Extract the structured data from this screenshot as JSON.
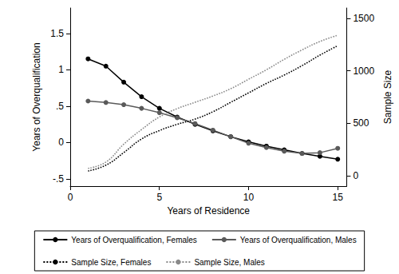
{
  "chart_data": {
    "type": "line",
    "xlabel": "Years of Residence",
    "ylabel": "Years of Overqualification",
    "y2label": "Sample Size",
    "x": [
      1,
      2,
      3,
      4,
      5,
      6,
      7,
      8,
      9,
      10,
      11,
      12,
      13,
      14,
      15
    ],
    "xlim": [
      0,
      15.5
    ],
    "xticks": [
      0,
      5,
      10,
      15
    ],
    "ylim": [
      -0.6,
      1.85
    ],
    "yticks": [
      {
        "value": -0.5,
        "label": "-.5"
      },
      0,
      {
        "value": 0.5,
        "label": ".5"
      },
      1,
      1.5
    ],
    "y2lim": [
      -100,
      1600
    ],
    "y2ticks": [
      0,
      500,
      1000,
      1500
    ],
    "grid": false,
    "legend": "bottom",
    "series": [
      {
        "name": "Years of Overqualification, Females",
        "color": "#000000",
        "marker": "circle",
        "line_style": "solid",
        "values": [
          1.15,
          1.05,
          0.83,
          0.63,
          0.47,
          0.35,
          0.25,
          0.16,
          0.08,
          0.01,
          -0.05,
          -0.1,
          -0.15,
          -0.19,
          -0.23
        ]
      },
      {
        "name": "Years of Overqualification, Males",
        "color": "#5a5a5a",
        "marker": "circle",
        "line_style": "solid",
        "values": [
          0.57,
          0.55,
          0.52,
          0.47,
          0.41,
          0.34,
          0.26,
          0.17,
          0.08,
          -0.01,
          -0.07,
          -0.12,
          -0.15,
          -0.14,
          -0.08
        ]
      },
      {
        "name": "Sample Size, Females",
        "color": "#000000",
        "marker": "none",
        "line_style": "dotted",
        "axis": "y2",
        "values": [
          45,
          100,
          220,
          350,
          430,
          490,
          540,
          610,
          700,
          790,
          880,
          960,
          1050,
          1150,
          1240
        ]
      },
      {
        "name": "Sample Size, Males",
        "color": "#8a8a8a",
        "marker": "none",
        "line_style": "dotted",
        "axis": "y2",
        "values": [
          70,
          130,
          300,
          440,
          560,
          640,
          700,
          760,
          830,
          920,
          1010,
          1110,
          1200,
          1280,
          1340
        ]
      }
    ]
  }
}
